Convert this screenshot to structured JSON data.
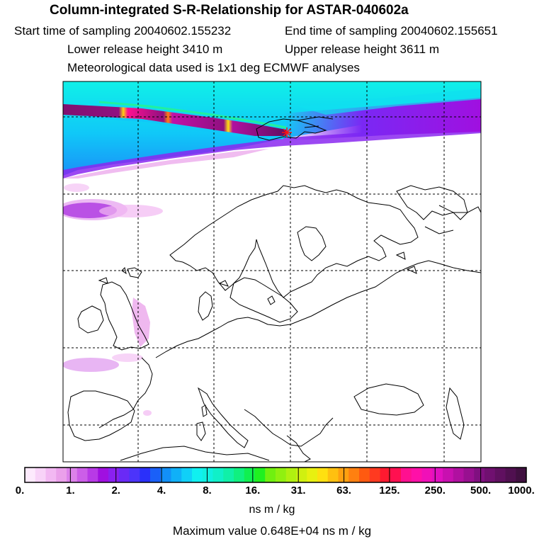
{
  "header": {
    "title": "Column-integrated S-R-Relationship for ASTAR-040602a",
    "start_time": "Start time of sampling 20040602.155232",
    "end_time": "End time of sampling 20040602.155651",
    "lower_release": "Lower release height 3410 m",
    "upper_release": "Upper release height 3611 m",
    "met_data": "Meteorological data used is 1x1 deg ECMWF analyses"
  },
  "colorbar": {
    "ticks": [
      "0.",
      "1.",
      "2.",
      "4.",
      "8.",
      "16.",
      "31.",
      "63.",
      "125.",
      "250.",
      "500.",
      "1000."
    ],
    "colors": [
      "#fdeafd",
      "#f8d3f8",
      "#f2b8f2",
      "#eaa0ea",
      "#dc82ea",
      "#cc5ee8",
      "#b83ae6",
      "#a010e0",
      "#8a20f0",
      "#6a2af6",
      "#4c34fa",
      "#2a30fa",
      "#1a60f8",
      "#1290f8",
      "#10b0f8",
      "#10d0f8",
      "#10f0f0",
      "#10f0e0",
      "#10f0c8",
      "#10f0a8",
      "#10f080",
      "#10f050",
      "#20f020",
      "#70f010",
      "#90f010",
      "#b0f010",
      "#d0f010",
      "#e8f010",
      "#ffe010",
      "#ffc010",
      "#ffa010",
      "#ff8010",
      "#ff5a10",
      "#ff3a20",
      "#ff1a30",
      "#ff1050",
      "#ff1090",
      "#ff10a8",
      "#f010b8",
      "#e010c0",
      "#c810b0",
      "#b010a0",
      "#981090",
      "#801080",
      "#701070",
      "#601060",
      "#501050",
      "#401040"
    ],
    "unit_label": "ns m / kg"
  },
  "footer": {
    "max_value": "Maximum value  0.648E+04 ns m / kg"
  },
  "map": {
    "release_site_marker": "star-marker"
  }
}
